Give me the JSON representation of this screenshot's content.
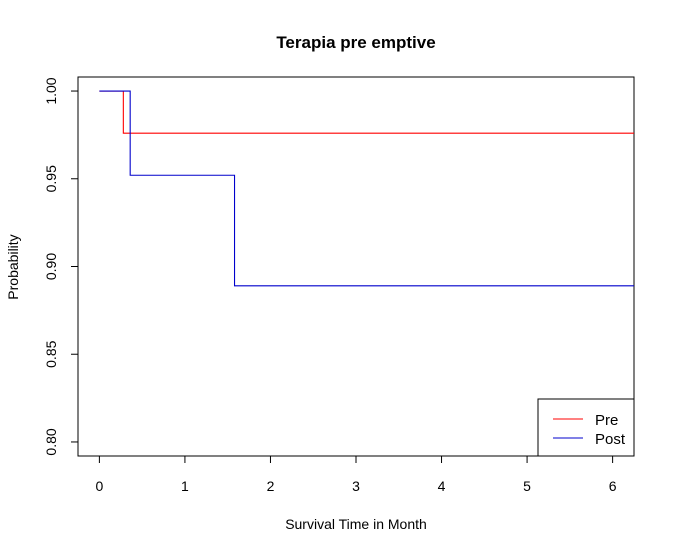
{
  "chart_data": {
    "type": "line",
    "step": true,
    "title": "Terapia pre emptive",
    "xlabel": "Survival Time in Month",
    "ylabel": "Probability",
    "xlim": [
      -0.25,
      6.25
    ],
    "ylim": [
      0.792,
      1.008
    ],
    "x_ticks": [
      0,
      1,
      2,
      3,
      4,
      5,
      6
    ],
    "y_ticks": [
      0.8,
      0.85,
      0.9,
      0.95,
      1.0
    ],
    "x_tick_labels": [
      "0",
      "1",
      "2",
      "3",
      "4",
      "5",
      "6"
    ],
    "y_tick_labels": [
      "0.80",
      "0.85",
      "0.90",
      "0.95",
      "1.00"
    ],
    "grid": false,
    "legend_position": "bottom-right",
    "series": [
      {
        "name": "Pre",
        "color": "#ff0000",
        "x": [
          0,
          0.28,
          6.25
        ],
        "y": [
          1.0,
          0.976,
          0.976
        ]
      },
      {
        "name": "Post",
        "color": "#0000cc",
        "x": [
          0,
          0.36,
          1.58,
          6.25
        ],
        "y": [
          1.0,
          0.952,
          0.889,
          0.889
        ]
      }
    ]
  }
}
